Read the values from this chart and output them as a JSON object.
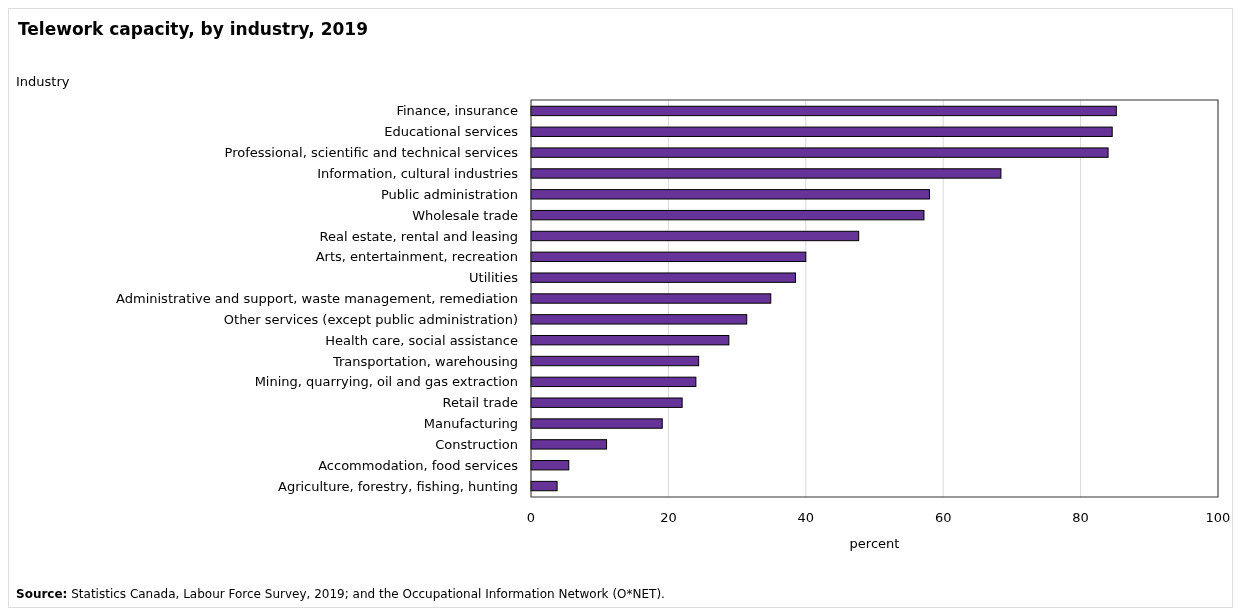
{
  "chart_data": {
    "type": "bar",
    "orientation": "horizontal",
    "title": "Telework capacity, by industry, 2019",
    "ylabel": "Industry",
    "xlabel": "percent",
    "categories": [
      "Finance, insurance",
      "Educational services",
      "Professional, scientific and technical services",
      "Information, cultural industries",
      "Public administration",
      "Wholesale trade",
      "Real estate, rental and leasing",
      "Arts, entertainment, recreation",
      "Utilities",
      "Administrative and support, waste management, remediation",
      "Other services (except public administration)",
      "Health care, social assistance",
      "Transportation, warehousing",
      "Mining, quarrying, oil and gas extraction",
      "Retail trade",
      "Manufacturing",
      "Construction",
      "Accommodation, food services",
      "Agriculture, forestry, fishing, hunting"
    ],
    "values": [
      85.2,
      84.6,
      84.0,
      68.4,
      58.0,
      57.2,
      47.7,
      40.0,
      38.5,
      34.9,
      31.4,
      28.8,
      24.4,
      24.0,
      22.0,
      19.1,
      11.0,
      5.5,
      3.8
    ],
    "color": "#663399",
    "xlim": [
      0,
      100
    ],
    "xticks": [
      0,
      20,
      40,
      60,
      80,
      100
    ],
    "grid": "x",
    "annotations": [
      "Source: Statistics Canada, Labour Force Survey, 2019; and the Occupational Information Network (O*NET)."
    ]
  }
}
